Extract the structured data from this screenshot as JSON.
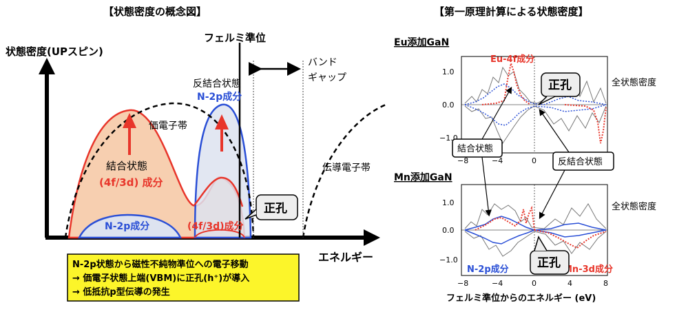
{
  "left": {
    "title": "【状態密度の概念図】",
    "y_axis_label": "状態密度(UPスピン)",
    "x_axis_label": "エネルギー",
    "fermi_label": "フェルミ準位",
    "gap_label_1": "バンド",
    "gap_label_2": "ギャップ",
    "valence_band": "価電子帯",
    "antibonding": "反結合状態",
    "n2p_component_upper": "N-2p成分",
    "bonding": "結合状態",
    "fd_component": "(4f/3d) 成分",
    "n2p_component_lower": "N-2p成分",
    "fd_component_lower": "(4f/3d)成分",
    "hole_callout": "正孔",
    "conduction_band": "伝導電子帯",
    "summary_lines": [
      "N-2p状態から磁性不純物準位への電子移動",
      "→ 価電子状態上端(VBM)に正孔(h⁺)が導入",
      "→ 低抵抗p型伝導の発生"
    ]
  },
  "right": {
    "title": "【第一原理計算による状態密度】",
    "eu_panel_title": "Eu添加GaN",
    "mn_panel_title": "Mn添加GaN",
    "eu_4f_label": "Eu-4f成分",
    "total_dos_eu": "全状態密度",
    "total_dos_mn": "全状態密度",
    "hole_eu": "正孔",
    "hole_mn": "正孔",
    "bonding_callout": "結合状態",
    "antibonding_callout": "反結合状態",
    "n2p_label": "N-2p成分",
    "mn_3d_label": "Mn-3d成分",
    "x_axis_title": "フェルミ準位からのエネルギー (eV)",
    "x_ticks": [
      "−8",
      "−4",
      "0",
      "4",
      "8"
    ],
    "y_ticks": [
      "1.0",
      "0.0",
      "−1.0"
    ]
  },
  "colors": {
    "red": "#e8352a",
    "blue": "#2a4fd6",
    "orange_fill": "#f7cfb0",
    "blue_fill": "#dde3f0",
    "summary_bg": "#fcf52a"
  }
}
